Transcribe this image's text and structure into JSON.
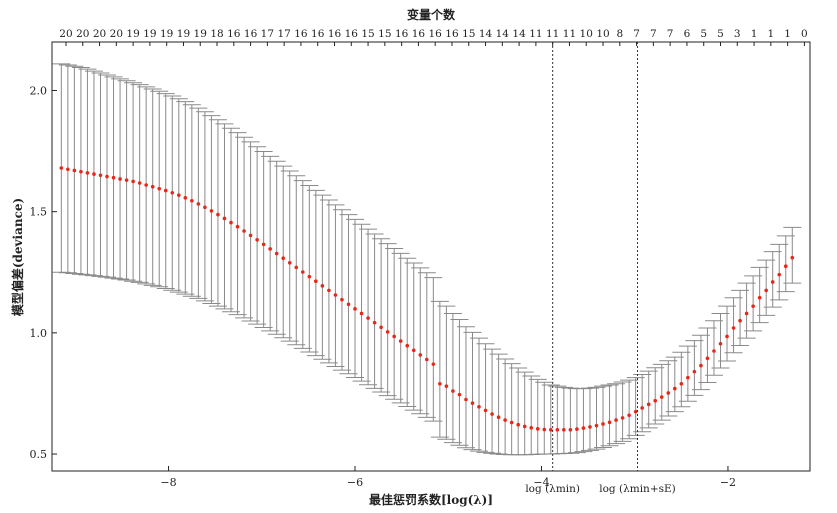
{
  "chart_data": {
    "type": "scatter",
    "title": "",
    "top_axis_title": "变量个数",
    "xlabel": "最佳惩罚系数[log(λ)]",
    "ylabel": "模型偏差(deviance)",
    "x_range": [
      -9.25,
      -1.12
    ],
    "y_range": [
      0.43,
      2.2
    ],
    "x_ticks": [
      -8,
      -6,
      -4,
      -2
    ],
    "x_tick_labels": [
      "−8",
      "−6",
      "−4",
      "−2"
    ],
    "y_ticks": [
      0.5,
      1.0,
      1.5,
      2.0
    ],
    "y_tick_labels": [
      "0.5",
      "1.0",
      "1.5",
      "2.0"
    ],
    "top_ticks": [
      {
        "x": -9.1,
        "label": "20"
      },
      {
        "x": -8.92,
        "label": "20"
      },
      {
        "x": -8.74,
        "label": "20"
      },
      {
        "x": -8.56,
        "label": "20"
      },
      {
        "x": -8.38,
        "label": "19"
      },
      {
        "x": -8.2,
        "label": "19"
      },
      {
        "x": -8.02,
        "label": "19"
      },
      {
        "x": -7.84,
        "label": "19"
      },
      {
        "x": -7.66,
        "label": "19"
      },
      {
        "x": -7.48,
        "label": "18"
      },
      {
        "x": -7.3,
        "label": "16"
      },
      {
        "x": -7.12,
        "label": "16"
      },
      {
        "x": -6.94,
        "label": "17"
      },
      {
        "x": -6.76,
        "label": "17"
      },
      {
        "x": -6.58,
        "label": "16"
      },
      {
        "x": -6.4,
        "label": "16"
      },
      {
        "x": -6.22,
        "label": "16"
      },
      {
        "x": -6.04,
        "label": "16"
      },
      {
        "x": -5.86,
        "label": "15"
      },
      {
        "x": -5.68,
        "label": "15"
      },
      {
        "x": -5.5,
        "label": "16"
      },
      {
        "x": -5.32,
        "label": "16"
      },
      {
        "x": -5.14,
        "label": "16"
      },
      {
        "x": -4.96,
        "label": "16"
      },
      {
        "x": -4.78,
        "label": "15"
      },
      {
        "x": -4.6,
        "label": "14"
      },
      {
        "x": -4.42,
        "label": "14"
      },
      {
        "x": -4.24,
        "label": "14"
      },
      {
        "x": -4.06,
        "label": "11"
      },
      {
        "x": -3.88,
        "label": "11"
      },
      {
        "x": -3.7,
        "label": "11"
      },
      {
        "x": -3.52,
        "label": "10"
      },
      {
        "x": -3.34,
        "label": "10"
      },
      {
        "x": -3.16,
        "label": "8"
      },
      {
        "x": -2.98,
        "label": "7"
      },
      {
        "x": -2.8,
        "label": "7"
      },
      {
        "x": -2.62,
        "label": "7"
      },
      {
        "x": -2.44,
        "label": "6"
      },
      {
        "x": -2.26,
        "label": "5"
      },
      {
        "x": -2.08,
        "label": "5"
      },
      {
        "x": -1.9,
        "label": "3"
      },
      {
        "x": -1.72,
        "label": "1"
      },
      {
        "x": -1.54,
        "label": "1"
      },
      {
        "x": -1.36,
        "label": "1"
      },
      {
        "x": -1.18,
        "label": "0"
      }
    ],
    "vlines": [
      {
        "x": -3.88,
        "label": "log (λmin)"
      },
      {
        "x": -2.97,
        "label": "log (λmin+sE)"
      }
    ],
    "grid": false,
    "series": [
      {
        "point_color": "#e8271b",
        "errorbar_color": "#8a8a8a",
        "x": [
          -9.15,
          -9.08,
          -9.01,
          -8.94,
          -8.87,
          -8.8,
          -8.73,
          -8.66,
          -8.59,
          -8.52,
          -8.45,
          -8.38,
          -8.31,
          -8.24,
          -8.17,
          -8.1,
          -8.03,
          -7.96,
          -7.89,
          -7.82,
          -7.75,
          -7.68,
          -7.61,
          -7.54,
          -7.47,
          -7.4,
          -7.33,
          -7.26,
          -7.19,
          -7.12,
          -7.05,
          -6.98,
          -6.91,
          -6.84,
          -6.77,
          -6.7,
          -6.63,
          -6.56,
          -6.49,
          -6.42,
          -6.35,
          -6.28,
          -6.21,
          -6.14,
          -6.07,
          -6.0,
          -5.93,
          -5.86,
          -5.79,
          -5.72,
          -5.65,
          -5.58,
          -5.51,
          -5.44,
          -5.37,
          -5.3,
          -5.23,
          -5.16,
          -5.09,
          -5.02,
          -4.95,
          -4.88,
          -4.81,
          -4.74,
          -4.67,
          -4.6,
          -4.53,
          -4.46,
          -4.39,
          -4.32,
          -4.25,
          -4.18,
          -4.11,
          -4.04,
          -3.97,
          -3.9,
          -3.83,
          -3.76,
          -3.69,
          -3.62,
          -3.55,
          -3.48,
          -3.41,
          -3.34,
          -3.27,
          -3.2,
          -3.13,
          -3.06,
          -2.99,
          -2.92,
          -2.85,
          -2.78,
          -2.71,
          -2.64,
          -2.57,
          -2.5,
          -2.43,
          -2.36,
          -2.29,
          -2.22,
          -2.15,
          -2.08,
          -2.01,
          -1.94,
          -1.87,
          -1.8,
          -1.73,
          -1.66,
          -1.59,
          -1.52,
          -1.45,
          -1.38,
          -1.31
        ],
        "y": [
          1.68,
          1.675,
          1.67,
          1.665,
          1.66,
          1.655,
          1.65,
          1.645,
          1.64,
          1.635,
          1.63,
          1.625,
          1.618,
          1.61,
          1.603,
          1.595,
          1.587,
          1.578,
          1.568,
          1.557,
          1.545,
          1.532,
          1.518,
          1.503,
          1.488,
          1.472,
          1.455,
          1.438,
          1.42,
          1.402,
          1.384,
          1.365,
          1.346,
          1.327,
          1.308,
          1.289,
          1.27,
          1.251,
          1.232,
          1.213,
          1.194,
          1.175,
          1.156,
          1.137,
          1.118,
          1.099,
          1.08,
          1.061,
          1.042,
          1.023,
          1.004,
          0.985,
          0.966,
          0.947,
          0.928,
          0.909,
          0.89,
          0.871,
          0.79,
          0.78,
          0.76,
          0.745,
          0.725,
          0.71,
          0.695,
          0.68,
          0.665,
          0.652,
          0.64,
          0.63,
          0.621,
          0.614,
          0.608,
          0.604,
          0.601,
          0.6,
          0.6,
          0.6,
          0.6,
          0.603,
          0.607,
          0.612,
          0.617,
          0.624,
          0.631,
          0.64,
          0.649,
          0.66,
          0.675,
          0.69,
          0.705,
          0.72,
          0.735,
          0.752,
          0.77,
          0.79,
          0.815,
          0.84,
          0.865,
          0.895,
          0.925,
          0.955,
          0.985,
          1.02,
          1.05,
          1.08,
          1.11,
          1.145,
          1.175,
          1.21,
          1.24,
          1.275,
          1.31
        ],
        "err_low": [
          1.25,
          1.248,
          1.245,
          1.242,
          1.239,
          1.236,
          1.233,
          1.23,
          1.226,
          1.222,
          1.218,
          1.213,
          1.208,
          1.202,
          1.196,
          1.19,
          1.183,
          1.176,
          1.168,
          1.16,
          1.151,
          1.142,
          1.132,
          1.121,
          1.11,
          1.099,
          1.087,
          1.075,
          1.062,
          1.049,
          1.036,
          1.022,
          1.008,
          0.994,
          0.98,
          0.966,
          0.951,
          0.936,
          0.921,
          0.906,
          0.891,
          0.876,
          0.861,
          0.846,
          0.831,
          0.816,
          0.801,
          0.786,
          0.771,
          0.756,
          0.741,
          0.726,
          0.711,
          0.696,
          0.681,
          0.666,
          0.651,
          0.636,
          0.57,
          0.561,
          0.547,
          0.536,
          0.526,
          0.518,
          0.512,
          0.507,
          0.503,
          0.5,
          0.498,
          0.497,
          0.497,
          0.497,
          0.498,
          0.499,
          0.5,
          0.5,
          0.501,
          0.502,
          0.503,
          0.506,
          0.51,
          0.515,
          0.52,
          0.527,
          0.534,
          0.543,
          0.552,
          0.563,
          0.577,
          0.592,
          0.608,
          0.624,
          0.64,
          0.657,
          0.675,
          0.695,
          0.718,
          0.742,
          0.766,
          0.795,
          0.825,
          0.855,
          0.884,
          0.918,
          0.948,
          0.978,
          1.008,
          1.042,
          1.072,
          1.106,
          1.136,
          1.17,
          1.205
        ],
        "err_high": [
          2.11,
          2.105,
          2.1,
          2.095,
          2.088,
          2.08,
          2.072,
          2.064,
          2.056,
          2.048,
          2.04,
          2.032,
          2.024,
          2.015,
          2.006,
          1.997,
          1.987,
          1.977,
          1.966,
          1.954,
          1.941,
          1.927,
          1.912,
          1.896,
          1.879,
          1.862,
          1.844,
          1.826,
          1.807,
          1.788,
          1.768,
          1.748,
          1.728,
          1.708,
          1.688,
          1.668,
          1.648,
          1.628,
          1.608,
          1.588,
          1.568,
          1.548,
          1.528,
          1.508,
          1.488,
          1.468,
          1.448,
          1.428,
          1.408,
          1.388,
          1.368,
          1.348,
          1.328,
          1.308,
          1.288,
          1.268,
          1.248,
          1.228,
          1.13,
          1.11,
          1.08,
          1.055,
          1.025,
          1.002,
          0.978,
          0.955,
          0.933,
          0.912,
          0.892,
          0.873,
          0.855,
          0.838,
          0.822,
          0.808,
          0.796,
          0.785,
          0.78,
          0.775,
          0.772,
          0.77,
          0.77,
          0.772,
          0.775,
          0.78,
          0.785,
          0.79,
          0.797,
          0.805,
          0.815,
          0.828,
          0.842,
          0.856,
          0.87,
          0.885,
          0.9,
          0.92,
          0.945,
          0.968,
          0.99,
          1.02,
          1.05,
          1.08,
          1.11,
          1.145,
          1.175,
          1.205,
          1.235,
          1.27,
          1.3,
          1.335,
          1.365,
          1.4,
          1.435
        ]
      }
    ]
  }
}
